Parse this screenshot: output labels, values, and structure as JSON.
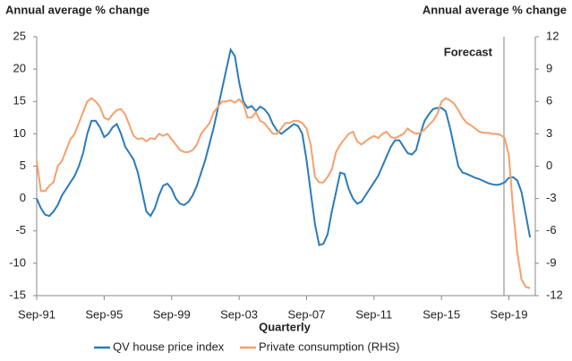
{
  "chart_data": {
    "type": "line",
    "y_label": "Annual average % change",
    "y2_label": "Annual average % change",
    "x_label": "Quarterly",
    "annotation": "Forecast",
    "categories": [
      "Sep-91",
      null,
      null,
      null,
      null,
      null,
      null,
      null,
      null,
      null,
      null,
      null,
      null,
      null,
      null,
      null,
      "Sep-95",
      null,
      null,
      null,
      null,
      null,
      null,
      null,
      null,
      null,
      null,
      null,
      null,
      null,
      null,
      null,
      "Sep-99",
      null,
      null,
      null,
      null,
      null,
      null,
      null,
      null,
      null,
      null,
      null,
      null,
      null,
      null,
      null,
      "Sep-03",
      null,
      null,
      null,
      null,
      null,
      null,
      null,
      null,
      null,
      null,
      null,
      null,
      null,
      null,
      null,
      "Sep-07",
      null,
      null,
      null,
      null,
      null,
      null,
      null,
      null,
      null,
      null,
      null,
      null,
      null,
      null,
      null,
      "Sep-11",
      null,
      null,
      null,
      null,
      null,
      null,
      null,
      null,
      null,
      null,
      null,
      null,
      null,
      null,
      null,
      "Sep-15",
      null,
      null,
      null,
      null,
      null,
      null,
      null,
      null,
      null,
      null,
      null,
      null,
      null,
      null,
      null,
      "Sep-19",
      null,
      null,
      null,
      null,
      null
    ],
    "series": [
      {
        "name": "QV house price index",
        "color": "#2b7bb9",
        "axis": "y",
        "values": [
          0,
          -1.5,
          -2.5,
          -2.7,
          -2,
          -1,
          0.5,
          1.5,
          2.5,
          3.5,
          5,
          7,
          10,
          12,
          12,
          11,
          9.5,
          10,
          11,
          11.5,
          10,
          8,
          7,
          6,
          4,
          1,
          -2,
          -2.7,
          -1.5,
          0.5,
          2,
          2.3,
          1.5,
          0,
          -0.8,
          -1,
          -0.5,
          0.5,
          2,
          4,
          6,
          8.5,
          11,
          14,
          17,
          20,
          23,
          22,
          18,
          15,
          14,
          14.3,
          13.5,
          14.2,
          13.8,
          13,
          11.5,
          10.5,
          10,
          10.5,
          11,
          11.5,
          11.2,
          10,
          6,
          1,
          -4,
          -7.2,
          -7,
          -5.5,
          -2,
          1,
          4,
          3.8,
          1.5,
          0,
          -0.8,
          -0.5,
          0.5,
          1.5,
          2.5,
          3.5,
          5,
          6.5,
          8,
          9,
          9,
          8,
          7,
          6.8,
          7.5,
          10,
          12,
          13,
          13.8,
          14,
          14,
          13.5,
          11,
          8,
          5,
          4,
          3.8,
          3.5,
          3.2,
          3,
          2.7,
          2.4,
          2.2,
          2.1,
          2.2,
          2.5,
          3.2,
          3.3,
          2.8,
          1,
          -2.5,
          -6
        ]
      },
      {
        "name": "Private consumption (RHS)",
        "color": "#f5a06e",
        "axis": "y2",
        "values": [
          0.5,
          -2.3,
          -2.3,
          -1.8,
          -1.5,
          0,
          0.5,
          1.5,
          2.5,
          3,
          4,
          5,
          6,
          6.3,
          6,
          5.5,
          4.5,
          4.3,
          4.8,
          5.2,
          5.3,
          4.8,
          3.8,
          2.8,
          2.5,
          2.6,
          2.3,
          2.6,
          2.5,
          3,
          2.8,
          3,
          2.5,
          2,
          1.5,
          1.3,
          1.3,
          1.5,
          2,
          3,
          3.5,
          4,
          5,
          5.5,
          6,
          6,
          6.1,
          5.9,
          6.2,
          5.8,
          4.5,
          4.5,
          5,
          4.2,
          4,
          3.5,
          3,
          3,
          3.5,
          4,
          4,
          4.2,
          4.2,
          4,
          3.5,
          2,
          -1,
          -1.5,
          -1.5,
          -1,
          -0.3,
          1.3,
          2,
          2.5,
          3,
          3.2,
          2.3,
          2,
          2.3,
          2.6,
          2.8,
          2.6,
          3,
          3.2,
          2.7,
          2.6,
          2.8,
          3,
          3.5,
          3.2,
          3,
          3.1,
          3.4,
          3.8,
          4.2,
          4.8,
          6,
          6.3,
          6.1,
          5.8,
          5.2,
          4.5,
          4,
          3.8,
          3.5,
          3.2,
          3.1,
          3.1,
          3,
          3,
          2.9,
          2.6,
          1,
          -4,
          -8,
          -10.5,
          -11.2,
          -11.3
        ]
      }
    ],
    "ylim": [
      -15,
      25
    ],
    "yticks": [
      25,
      20,
      15,
      10,
      5,
      0,
      -5,
      -10,
      -15
    ],
    "y2lim": [
      -12,
      12
    ],
    "y2ticks": [
      12,
      9,
      6,
      3,
      0,
      -3,
      -6,
      -9,
      -12
    ],
    "grid": false
  }
}
